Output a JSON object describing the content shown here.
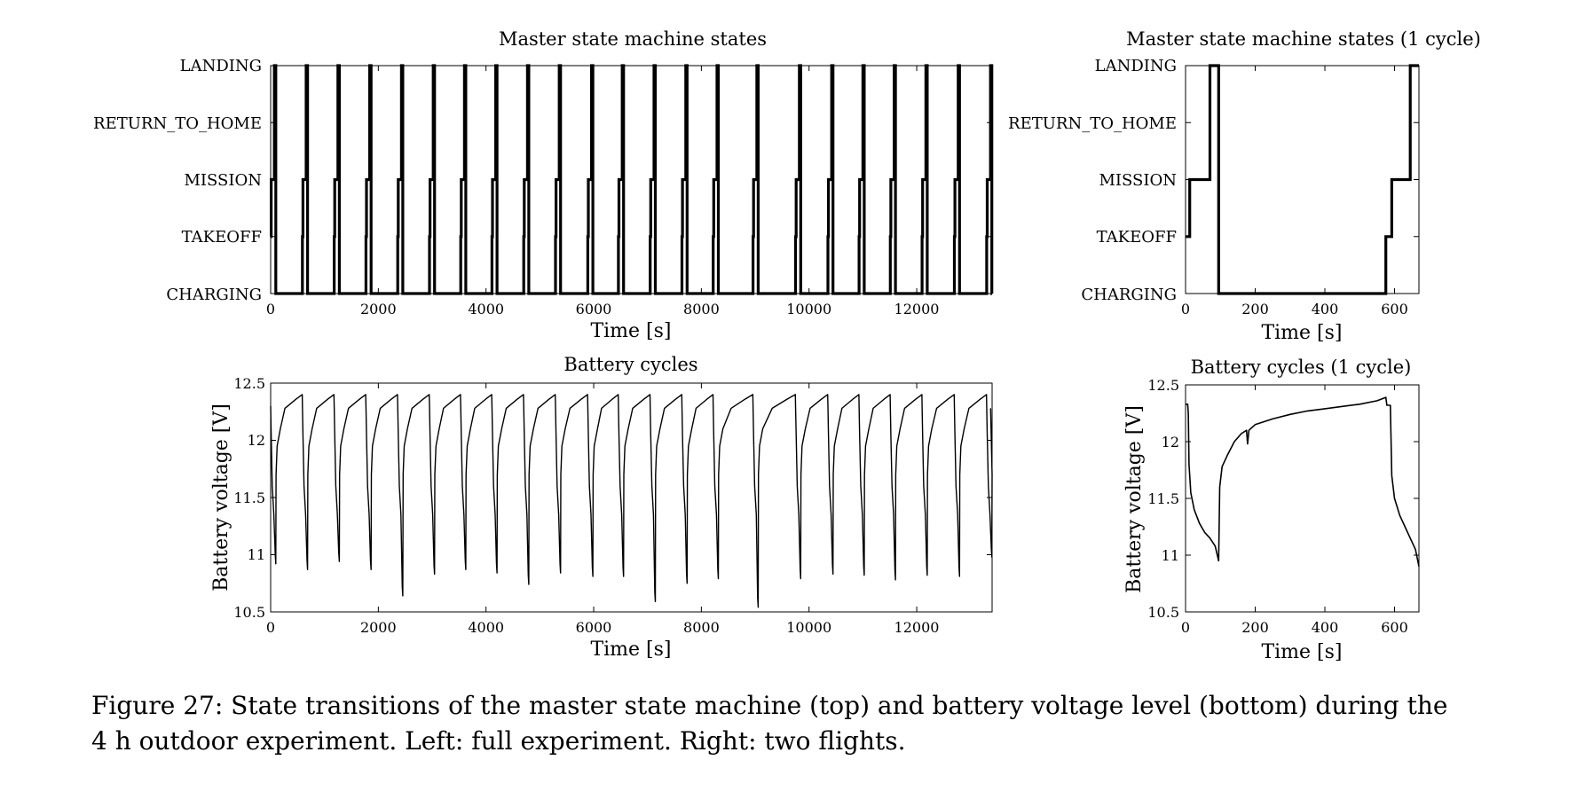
{
  "charts": {
    "states_full": {
      "title": "Master state machine states",
      "xlabel": "Time [s]",
      "xticks": [
        "0",
        "2000",
        "4000",
        "6000",
        "8000",
        "10000",
        "12000"
      ],
      "ylabels": [
        "CHARGING",
        "TAKEOFF",
        "MISSION",
        "RETURN_TO_HOME",
        "LANDING"
      ]
    },
    "states_cycle": {
      "title": "Master state machine states (1 cycle)",
      "xlabel": "Time [s]",
      "xticks": [
        "0",
        "200",
        "400",
        "600"
      ],
      "ylabels": [
        "CHARGING",
        "TAKEOFF",
        "MISSION",
        "RETURN_TO_HOME",
        "LANDING"
      ]
    },
    "battery_full": {
      "title": "Battery cycles",
      "xlabel": "Time [s]",
      "ylabel": "Battery voltage [V]",
      "xticks": [
        "0",
        "2000",
        "4000",
        "6000",
        "8000",
        "10000",
        "12000"
      ],
      "yticks": [
        "10.5",
        "11",
        "11.5",
        "12",
        "12.5"
      ]
    },
    "battery_cycle": {
      "title": "Battery cycles (1 cycle)",
      "xlabel": "Time [s]",
      "ylabel": "Battery voltage [V]",
      "xticks": [
        "0",
        "200",
        "400",
        "600"
      ],
      "yticks": [
        "10.5",
        "11",
        "11.5",
        "12",
        "12.5"
      ]
    }
  },
  "chart_data": [
    {
      "type": "line",
      "title": "Master state machine states",
      "xlabel": "Time [s]",
      "ylabel": "",
      "xlim": [
        0,
        13400
      ],
      "y_categories": [
        "CHARGING",
        "TAKEOFF",
        "MISSION",
        "RETURN_TO_HOME",
        "LANDING"
      ],
      "cycle_starts": [
        0,
        590,
        1180,
        1770,
        2360,
        2950,
        3530,
        4110,
        4700,
        5290,
        5890,
        6460,
        7050,
        7640,
        8220,
        8960,
        9750,
        10350,
        10930,
        11510,
        12100,
        12700,
        13300
      ],
      "cycle_pattern": [
        {
          "t": 0,
          "state": "TAKEOFF"
        },
        {
          "t": 10,
          "state": "MISSION"
        },
        {
          "t": 70,
          "state": "LANDING"
        },
        {
          "t": 95,
          "state": "CHARGING"
        }
      ]
    },
    {
      "type": "line",
      "title": "Master state machine states (1 cycle)",
      "xlabel": "Time [s]",
      "ylabel": "",
      "xlim": [
        0,
        670
      ],
      "y_categories": [
        "CHARGING",
        "TAKEOFF",
        "MISSION",
        "RETURN_TO_HOME",
        "LANDING"
      ],
      "series": [
        {
          "points": [
            {
              "x": 0,
              "state": "TAKEOFF"
            },
            {
              "x": 12,
              "state": "TAKEOFF"
            },
            {
              "x": 12,
              "state": "MISSION"
            },
            {
              "x": 70,
              "state": "MISSION"
            },
            {
              "x": 70,
              "state": "LANDING"
            },
            {
              "x": 95,
              "state": "LANDING"
            },
            {
              "x": 95,
              "state": "CHARGING"
            },
            {
              "x": 575,
              "state": "CHARGING"
            },
            {
              "x": 575,
              "state": "TAKEOFF"
            },
            {
              "x": 592,
              "state": "TAKEOFF"
            },
            {
              "x": 592,
              "state": "MISSION"
            },
            {
              "x": 645,
              "state": "MISSION"
            },
            {
              "x": 645,
              "state": "LANDING"
            },
            {
              "x": 670,
              "state": "LANDING"
            }
          ]
        }
      ]
    },
    {
      "type": "line",
      "title": "Battery cycles",
      "xlabel": "Time [s]",
      "ylabel": "Battery voltage [V]",
      "xlim": [
        0,
        13400
      ],
      "ylim": [
        10.5,
        12.5
      ],
      "cycles": [
        {
          "start": 0,
          "min": 10.92
        },
        {
          "start": 590,
          "min": 10.87
        },
        {
          "start": 1180,
          "min": 10.94
        },
        {
          "start": 1770,
          "min": 10.87
        },
        {
          "start": 2360,
          "min": 10.64
        },
        {
          "start": 2950,
          "min": 10.83
        },
        {
          "start": 3530,
          "min": 10.87
        },
        {
          "start": 4110,
          "min": 10.84
        },
        {
          "start": 4700,
          "min": 10.74
        },
        {
          "start": 5290,
          "min": 10.84
        },
        {
          "start": 5890,
          "min": 10.81
        },
        {
          "start": 6460,
          "min": 10.81
        },
        {
          "start": 7050,
          "min": 10.59
        },
        {
          "start": 7640,
          "min": 10.75
        },
        {
          "start": 8220,
          "min": 10.79
        },
        {
          "start": 8960,
          "min": 10.54
        },
        {
          "start": 9750,
          "min": 10.79
        },
        {
          "start": 10350,
          "min": 10.83
        },
        {
          "start": 10930,
          "min": 10.82
        },
        {
          "start": 11510,
          "min": 10.78
        },
        {
          "start": 12100,
          "min": 10.82
        },
        {
          "start": 12700,
          "min": 10.81
        },
        {
          "start": 13300,
          "min": 10.98
        }
      ],
      "peak_voltage": 12.4
    },
    {
      "type": "line",
      "title": "Battery cycles (1 cycle)",
      "xlabel": "Time [s]",
      "ylabel": "Battery voltage [V]",
      "xlim": [
        0,
        670
      ],
      "ylim": [
        10.5,
        12.5
      ],
      "series": [
        {
          "points": [
            [
              0,
              12.33
            ],
            [
              6,
              12.33
            ],
            [
              8,
              12.25
            ],
            [
              10,
              11.8
            ],
            [
              15,
              11.55
            ],
            [
              25,
              11.4
            ],
            [
              40,
              11.28
            ],
            [
              55,
              11.2
            ],
            [
              70,
              11.15
            ],
            [
              85,
              11.08
            ],
            [
              95,
              10.95
            ],
            [
              98,
              11.6
            ],
            [
              105,
              11.78
            ],
            [
              120,
              11.88
            ],
            [
              140,
              12.0
            ],
            [
              160,
              12.07
            ],
            [
              175,
              12.1
            ],
            [
              178,
              11.98
            ],
            [
              182,
              12.1
            ],
            [
              200,
              12.15
            ],
            [
              250,
              12.2
            ],
            [
              300,
              12.24
            ],
            [
              350,
              12.27
            ],
            [
              400,
              12.29
            ],
            [
              450,
              12.31
            ],
            [
              500,
              12.33
            ],
            [
              550,
              12.36
            ],
            [
              575,
              12.39
            ],
            [
              578,
              12.32
            ],
            [
              588,
              12.32
            ],
            [
              592,
              11.7
            ],
            [
              600,
              11.5
            ],
            [
              615,
              11.35
            ],
            [
              630,
              11.25
            ],
            [
              645,
              11.15
            ],
            [
              660,
              11.05
            ],
            [
              670,
              10.9
            ]
          ]
        }
      ]
    }
  ],
  "caption": {
    "line1": "Figure 27: State transitions of the master state machine (top) and battery voltage level (bottom) during the",
    "line2": "4 h outdoor experiment. Left: full experiment. Right: two flights."
  }
}
